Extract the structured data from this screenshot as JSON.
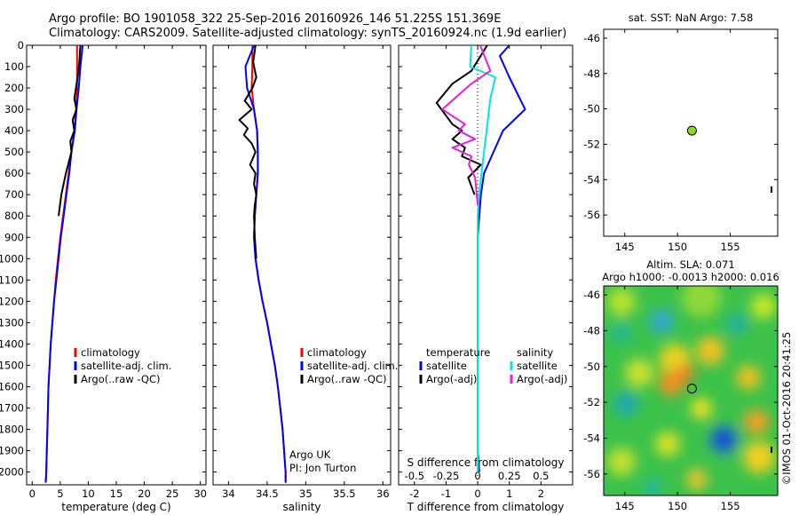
{
  "header": {
    "line1": "Argo profile: BO 1901058_322 25-Sep-2016 20160926_146 51.225S 151.369E",
    "line2": "Climatology: CARS2009. Satellite-adjusted climatology: synTS_20160924.nc (1.9d earlier)"
  },
  "footer_credit": "©IMOS 01-Oct-2016 20:41:25",
  "colors": {
    "climatology": "#ff0000",
    "satellite": "#0000ff",
    "argo": "#000000",
    "sal_satellite": "#00e5e5",
    "sal_argo": "#e020e0",
    "marker": "#80e020"
  },
  "chart_data": [
    {
      "id": "temperature-panel",
      "type": "line",
      "xlabel": "temperature (deg C)",
      "ylabel": "",
      "xlim": [
        -1,
        31
      ],
      "ylim": [
        2060,
        0
      ],
      "xticks": [
        "0",
        "5",
        "10",
        "15",
        "20",
        "25",
        "30"
      ],
      "yticks": [
        "0",
        "100",
        "200",
        "300",
        "400",
        "500",
        "600",
        "700",
        "800",
        "900",
        "1000",
        "1100",
        "1200",
        "1300",
        "1400",
        "1500",
        "1600",
        "1700",
        "1800",
        "1900",
        "2000"
      ],
      "legend": [
        "climatology",
        "satellite-adj. clim.",
        "Argo(..raw -QC)"
      ],
      "series": [
        {
          "name": "climatology",
          "color": "#ff0000",
          "x": [
            8,
            8,
            8,
            7.8,
            7.5,
            7,
            6.5,
            6,
            5.5,
            5,
            4.6,
            4.2,
            3.9,
            3.6,
            3.3,
            3.1,
            2.9,
            2.8,
            2.7,
            2.6,
            2.5,
            2.4
          ],
          "y": [
            0,
            100,
            200,
            300,
            400,
            500,
            600,
            700,
            800,
            900,
            1000,
            1100,
            1200,
            1300,
            1400,
            1500,
            1600,
            1700,
            1800,
            1900,
            2000,
            2050
          ]
        },
        {
          "name": "satellite-adj. clim.",
          "color": "#0000ff",
          "x": [
            9,
            8.6,
            8.3,
            7.9,
            7.6,
            7,
            6.6,
            6.1,
            5.6,
            5.1,
            4.7,
            4.3,
            3.9,
            3.6,
            3.3,
            3.1,
            2.9,
            2.8,
            2.7,
            2.6,
            2.5,
            2.4
          ],
          "y": [
            0,
            100,
            200,
            300,
            400,
            500,
            600,
            700,
            800,
            900,
            1000,
            1100,
            1200,
            1300,
            1400,
            1500,
            1600,
            1700,
            1800,
            1900,
            2000,
            2050
          ]
        },
        {
          "name": "Argo(..raw -QC)",
          "color": "#000000",
          "x": [
            8.6,
            8.4,
            8.1,
            7.5,
            7.9,
            7.2,
            7.5,
            6.8,
            7,
            6.4,
            6,
            5.2,
            4.7
          ],
          "y": [
            0,
            80,
            150,
            250,
            300,
            350,
            400,
            450,
            500,
            560,
            600,
            700,
            800
          ]
        }
      ],
      "annotations": []
    },
    {
      "id": "salinity-panel",
      "type": "line",
      "xlabel": "salinity",
      "ylabel": "",
      "xlim": [
        33.8,
        36.1
      ],
      "ylim": [
        2060,
        0
      ],
      "xticks": [
        "34",
        "34.5",
        "35",
        "35.5",
        "36"
      ],
      "legend": [
        "climatology",
        "satellite-adj. clim.",
        "Argo(..raw -QC)"
      ],
      "series": [
        {
          "name": "climatology",
          "color": "#ff0000",
          "x": [
            34.31,
            34.31,
            34.3,
            34.33,
            34.37,
            34.38,
            34.38,
            34.36,
            34.34,
            34.33,
            34.35,
            34.39,
            34.44,
            34.5,
            34.55,
            34.6,
            34.64,
            34.67,
            34.7,
            34.72,
            34.74,
            34.74
          ],
          "y": [
            0,
            100,
            200,
            300,
            400,
            500,
            600,
            700,
            800,
            900,
            1000,
            1100,
            1200,
            1300,
            1400,
            1500,
            1600,
            1700,
            1800,
            1900,
            2000,
            2050
          ]
        },
        {
          "name": "satellite-adj. clim.",
          "color": "#0000ff",
          "x": [
            34.33,
            34.22,
            34.24,
            34.33,
            34.37,
            34.38,
            34.38,
            34.36,
            34.34,
            34.33,
            34.35,
            34.39,
            34.44,
            34.5,
            34.55,
            34.6,
            34.64,
            34.67,
            34.7,
            34.72,
            34.74,
            34.74
          ],
          "y": [
            0,
            100,
            200,
            300,
            400,
            500,
            600,
            700,
            800,
            900,
            1000,
            1100,
            1200,
            1300,
            1400,
            1500,
            1600,
            1700,
            1800,
            1900,
            2000,
            2050
          ]
        },
        {
          "name": "Argo(..raw -QC)",
          "color": "#000000",
          "x": [
            34.35,
            34.32,
            34.36,
            34.31,
            34.21,
            34.3,
            34.14,
            34.25,
            34.2,
            34.3,
            34.35,
            34.28,
            34.35,
            34.33,
            34.36,
            34.34,
            34.33,
            34.34,
            34.36
          ],
          "y": [
            0,
            80,
            150,
            200,
            260,
            300,
            350,
            390,
            420,
            460,
            500,
            560,
            600,
            650,
            700,
            750,
            800,
            900,
            1000
          ]
        }
      ],
      "annotations": [
        "Argo UK",
        "PI: Jon Turton"
      ]
    },
    {
      "id": "difference-panel",
      "type": "line",
      "xlabel": "T difference from climatology",
      "x2label": "S difference from climatology",
      "xlim": [
        -2.5,
        3
      ],
      "ylim": [
        2060,
        0
      ],
      "xticks": [
        "-2",
        "-1",
        "0",
        "1",
        "2"
      ],
      "x2lim": [
        -0.625,
        0.75
      ],
      "x2ticks": [
        "-0.5",
        "-0.25",
        "0",
        "0.25",
        "0.5"
      ],
      "legend": [
        "temperature",
        "satellite",
        "Argo(-adj)",
        "salinity",
        "satellite",
        "Argo(-adj)"
      ],
      "series": [
        {
          "name": "temperature satellite",
          "color": "#0000ff",
          "x": [
            1,
            0.7,
            1,
            1.5,
            0.8,
            0.5,
            0.2,
            0.1,
            0.05,
            0,
            0,
            0,
            0,
            0,
            0,
            0,
            0,
            0,
            0,
            0,
            0.05
          ],
          "y": [
            0,
            50,
            150,
            300,
            400,
            500,
            600,
            700,
            800,
            900,
            1000,
            1100,
            1200,
            1300,
            1400,
            1500,
            1600,
            1700,
            1800,
            1900,
            2000
          ]
        },
        {
          "name": "temperature Argo(-adj)",
          "color": "#000000",
          "x": [
            0.3,
            -0.2,
            -0.8,
            -1.3,
            -0.8,
            -0.5,
            -0.8,
            -0.4,
            -0.5,
            0.1,
            -0.3,
            -0.1
          ],
          "y": [
            0,
            120,
            180,
            270,
            370,
            400,
            440,
            480,
            520,
            560,
            620,
            700
          ]
        },
        {
          "name": "salinity satellite",
          "color": "#00e5e5",
          "x": [
            -0.05,
            -0.06,
            0.14,
            0.1,
            0.07,
            0.05,
            0.03,
            0.01,
            0,
            0,
            0,
            0,
            0,
            0,
            0,
            0,
            0,
            0,
            0,
            0
          ],
          "y": [
            0,
            100,
            150,
            250,
            400,
            500,
            600,
            700,
            800,
            900,
            1000,
            1100,
            1200,
            1300,
            1400,
            1500,
            1600,
            1700,
            1800,
            2000
          ]
        },
        {
          "name": "salinity Argo(-adj)",
          "color": "#e020e0",
          "x": [
            0.02,
            0.1,
            -0.05,
            -0.28,
            -0.1,
            -0.15,
            -0.02,
            -0.2,
            -0.05,
            -0.07,
            -0.02,
            0
          ],
          "y": [
            0,
            120,
            180,
            300,
            370,
            400,
            440,
            480,
            520,
            560,
            620,
            750
          ]
        }
      ],
      "annotations": []
    },
    {
      "id": "sst-map",
      "type": "scatter",
      "title": "sat. SST: NaN Argo: 7.58",
      "xlim": [
        143,
        159.5
      ],
      "ylim": [
        -57.2,
        -45.5
      ],
      "xticks": [
        "145",
        "150",
        "155"
      ],
      "yticks": [
        "-46",
        "-48",
        "-50",
        "-52",
        "-54",
        "-56"
      ],
      "points": [
        {
          "x": 151.37,
          "y": -51.23
        }
      ]
    },
    {
      "id": "sla-map",
      "type": "heatmap",
      "title_line1": "Altim. SLA: 0.071",
      "title_line2": "Argo h1000: -0.0013 h2000: 0.016",
      "xlim": [
        143,
        159.5
      ],
      "ylim": [
        -57.2,
        -45.5
      ],
      "xticks": [
        "145",
        "150",
        "155"
      ],
      "yticks": [
        "-46",
        "-48",
        "-50",
        "-52",
        "-54",
        "-56"
      ],
      "points": [
        {
          "x": 151.37,
          "y": -51.23
        }
      ]
    }
  ]
}
